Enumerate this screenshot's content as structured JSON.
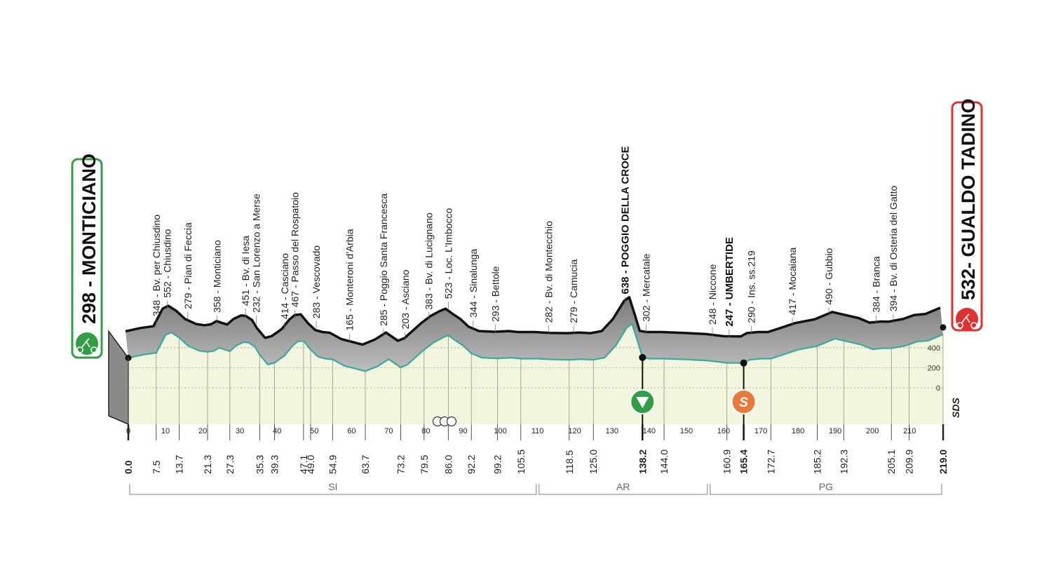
{
  "start": {
    "name": "298 - MONTICIANO",
    "accent": "#2f9e44"
  },
  "finish": {
    "name": "532- GUALDO TADINO",
    "accent": "#e03131"
  },
  "logo": "SDS",
  "chart_data": {
    "type": "area",
    "xlim": [
      0,
      219
    ],
    "x_ticks": [
      0,
      10,
      20,
      30,
      40,
      50,
      60,
      70,
      80,
      90,
      100,
      110,
      120,
      130,
      140,
      150,
      160,
      170,
      180,
      190,
      200,
      210
    ],
    "altitude_ticks": [
      400,
      200,
      0
    ],
    "profile": [
      [
        0,
        298
      ],
      [
        4,
        330
      ],
      [
        7.5,
        348
      ],
      [
        10,
        525
      ],
      [
        11.5,
        552
      ],
      [
        13.7,
        500
      ],
      [
        16,
        420
      ],
      [
        19,
        370
      ],
      [
        21.3,
        358
      ],
      [
        23,
        368
      ],
      [
        24.5,
        400
      ],
      [
        26,
        380
      ],
      [
        27.3,
        365
      ],
      [
        29,
        420
      ],
      [
        31,
        455
      ],
      [
        32.3,
        451
      ],
      [
        34,
        410
      ],
      [
        35.3,
        330
      ],
      [
        37.5,
        232
      ],
      [
        39.3,
        250
      ],
      [
        42,
        320
      ],
      [
        44,
        414
      ],
      [
        45.5,
        460
      ],
      [
        47.1,
        467
      ],
      [
        49.0,
        380
      ],
      [
        51,
        310
      ],
      [
        53,
        290
      ],
      [
        54.9,
        283
      ],
      [
        58,
        220
      ],
      [
        63.7,
        165
      ],
      [
        67,
        215
      ],
      [
        70,
        285
      ],
      [
        73.2,
        203
      ],
      [
        75,
        230
      ],
      [
        79.5,
        380
      ],
      [
        82,
        450
      ],
      [
        84.5,
        500
      ],
      [
        86.0,
        523
      ],
      [
        88,
        470
      ],
      [
        90,
        420
      ],
      [
        92.2,
        344
      ],
      [
        95,
        300
      ],
      [
        99.2,
        293
      ],
      [
        103,
        300
      ],
      [
        105.5,
        290
      ],
      [
        110,
        290
      ],
      [
        114,
        282
      ],
      [
        118.5,
        279
      ],
      [
        122,
        285
      ],
      [
        125.0,
        279
      ],
      [
        128,
        300
      ],
      [
        131,
        420
      ],
      [
        134,
        600
      ],
      [
        135.4,
        638
      ],
      [
        137,
        450
      ],
      [
        138.2,
        302
      ],
      [
        140,
        290
      ],
      [
        144.0,
        290
      ],
      [
        150,
        282
      ],
      [
        156,
        270
      ],
      [
        160.9,
        248
      ],
      [
        165.4,
        247
      ],
      [
        167,
        280
      ],
      [
        170,
        290
      ],
      [
        172.7,
        290
      ],
      [
        176,
        330
      ],
      [
        180,
        380
      ],
      [
        185.2,
        417
      ],
      [
        188,
        460
      ],
      [
        190,
        490
      ],
      [
        192.3,
        470
      ],
      [
        197,
        430
      ],
      [
        200,
        384
      ],
      [
        203,
        395
      ],
      [
        205.1,
        394
      ],
      [
        209,
        420
      ],
      [
        212,
        460
      ],
      [
        215,
        470
      ],
      [
        219,
        532
      ]
    ],
    "places": [
      {
        "km": 7.5,
        "label": "348 - Bv. per Chiusdino"
      },
      {
        "km": 10.5,
        "label": "552 - Chiusdino"
      },
      {
        "km": 16.0,
        "label": "279 - Pian di Feccia"
      },
      {
        "km": 23.8,
        "label": "358 - Monticiano"
      },
      {
        "km": 31.5,
        "label": "451 - Bv. di Iesa"
      },
      {
        "km": 34.4,
        "label": "232 - San Lorenzo a Merse"
      },
      {
        "km": 42.0,
        "label": "414 - Casciano"
      },
      {
        "km": 44.8,
        "label": "467 - Passo del Rospatoio"
      },
      {
        "km": 50.5,
        "label": "283 - Vescovado"
      },
      {
        "km": 59.5,
        "label": "165 - Monteroni d'Arbia"
      },
      {
        "km": 68.6,
        "label": "285 - Poggio Santa Francesca"
      },
      {
        "km": 74.4,
        "label": "203 - Asciano"
      },
      {
        "km": 80.8,
        "label": "383 - Bv. di Lucignano"
      },
      {
        "km": 86.0,
        "label": "523 - Loc. L'Imbocco"
      },
      {
        "km": 92.7,
        "label": "344 - Sinalunga"
      },
      {
        "km": 98.7,
        "label": "293 - Bettole"
      },
      {
        "km": 113.0,
        "label": "282 - Bv. di Montecchio"
      },
      {
        "km": 119.7,
        "label": "279 - Camucia"
      },
      {
        "km": 133.5,
        "label": "638 - POGGIO DELLA CROCE",
        "bold": true
      },
      {
        "km": 139.2,
        "label": "302 - Mercatale"
      },
      {
        "km": 157.0,
        "label": "248 - Niccone"
      },
      {
        "km": 161.5,
        "label": "247 - UMBERTIDE",
        "bold": true
      },
      {
        "km": 167.5,
        "label": "290 - Ins. ss.219"
      },
      {
        "km": 178.5,
        "label": "417 - Mocaiana"
      },
      {
        "km": 188.3,
        "label": "490 - Gubbio"
      },
      {
        "km": 201.0,
        "label": "384 - Branca"
      },
      {
        "km": 205.6,
        "label": "394 - Bv. di Osteria del Gatto"
      }
    ],
    "km_marks": [
      {
        "km": 0.0,
        "label": "0.0",
        "bold": true
      },
      {
        "km": 7.5,
        "label": "7.5"
      },
      {
        "km": 13.7,
        "label": "13.7"
      },
      {
        "km": 21.3,
        "label": "21.3"
      },
      {
        "km": 27.3,
        "label": "27.3"
      },
      {
        "km": 35.3,
        "label": "35.3"
      },
      {
        "km": 39.3,
        "label": "39.3"
      },
      {
        "km": 47.1,
        "label": "47.1"
      },
      {
        "km": 49.0,
        "label": "49.0"
      },
      {
        "km": 54.9,
        "label": "54.9"
      },
      {
        "km": 63.7,
        "label": "63.7"
      },
      {
        "km": 73.2,
        "label": "73.2"
      },
      {
        "km": 79.5,
        "label": "79.5"
      },
      {
        "km": 86.0,
        "label": "86.0"
      },
      {
        "km": 92.2,
        "label": "92.2"
      },
      {
        "km": 99.2,
        "label": "99.2"
      },
      {
        "km": 105.5,
        "label": "105.5"
      },
      {
        "km": 118.5,
        "label": "118.5"
      },
      {
        "km": 125.0,
        "label": "125.0"
      },
      {
        "km": 138.2,
        "label": "138.2",
        "bold": true
      },
      {
        "km": 144.0,
        "label": "144.0"
      },
      {
        "km": 160.9,
        "label": "160.9"
      },
      {
        "km": 165.4,
        "label": "165.4",
        "bold": true
      },
      {
        "km": 172.7,
        "label": "172.7"
      },
      {
        "km": 185.2,
        "label": "185.2"
      },
      {
        "km": 192.3,
        "label": "192.3"
      },
      {
        "km": 205.1,
        "label": "205.1"
      },
      {
        "km": 209.9,
        "label": "209.9"
      },
      {
        "km": 219.0,
        "label": "219.0",
        "bold": true
      }
    ],
    "markers": [
      {
        "km": 138.2,
        "kind": "gpm",
        "color": "#2f9e44"
      },
      {
        "km": 165.4,
        "kind": "sprint",
        "color": "#e8793a",
        "text": "S"
      }
    ],
    "regions": [
      {
        "from": 0,
        "to": 110,
        "label": "SI"
      },
      {
        "from": 110,
        "to": 156,
        "label": "AR"
      },
      {
        "from": 156,
        "to": 219,
        "label": "PG"
      }
    ],
    "feed_zone_km": 85
  }
}
